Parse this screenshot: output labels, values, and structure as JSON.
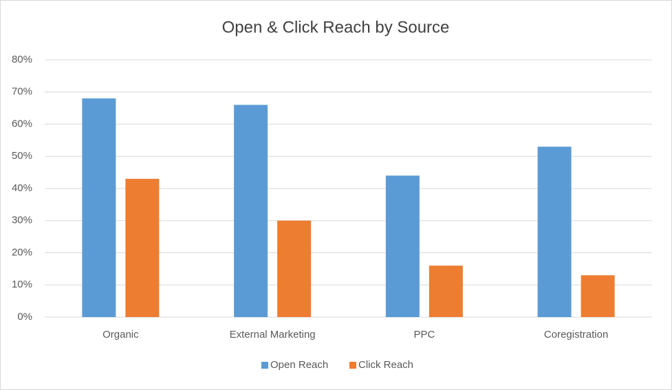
{
  "chart_data": {
    "type": "bar",
    "title": "Open & Click Reach by Source",
    "categories": [
      "Organic",
      "External Marketing",
      "PPC",
      "Coregistration"
    ],
    "series": [
      {
        "name": "Open Reach",
        "color": "#5b9bd5",
        "values": [
          68,
          66,
          44,
          53
        ]
      },
      {
        "name": "Click Reach",
        "color": "#ed7d31",
        "values": [
          43,
          30,
          16,
          13
        ]
      }
    ],
    "ylim": [
      0,
      80
    ],
    "yticks": [
      {
        "value": 0,
        "label": "0%"
      },
      {
        "value": 10,
        "label": "10%"
      },
      {
        "value": 20,
        "label": "20%"
      },
      {
        "value": 30,
        "label": "30%"
      },
      {
        "value": 40,
        "label": "40%"
      },
      {
        "value": 50,
        "label": "50%"
      },
      {
        "value": 60,
        "label": "60%"
      },
      {
        "value": 70,
        "label": "70%"
      },
      {
        "value": 80,
        "label": "80%"
      }
    ],
    "grid": true,
    "legend": "bottom"
  }
}
